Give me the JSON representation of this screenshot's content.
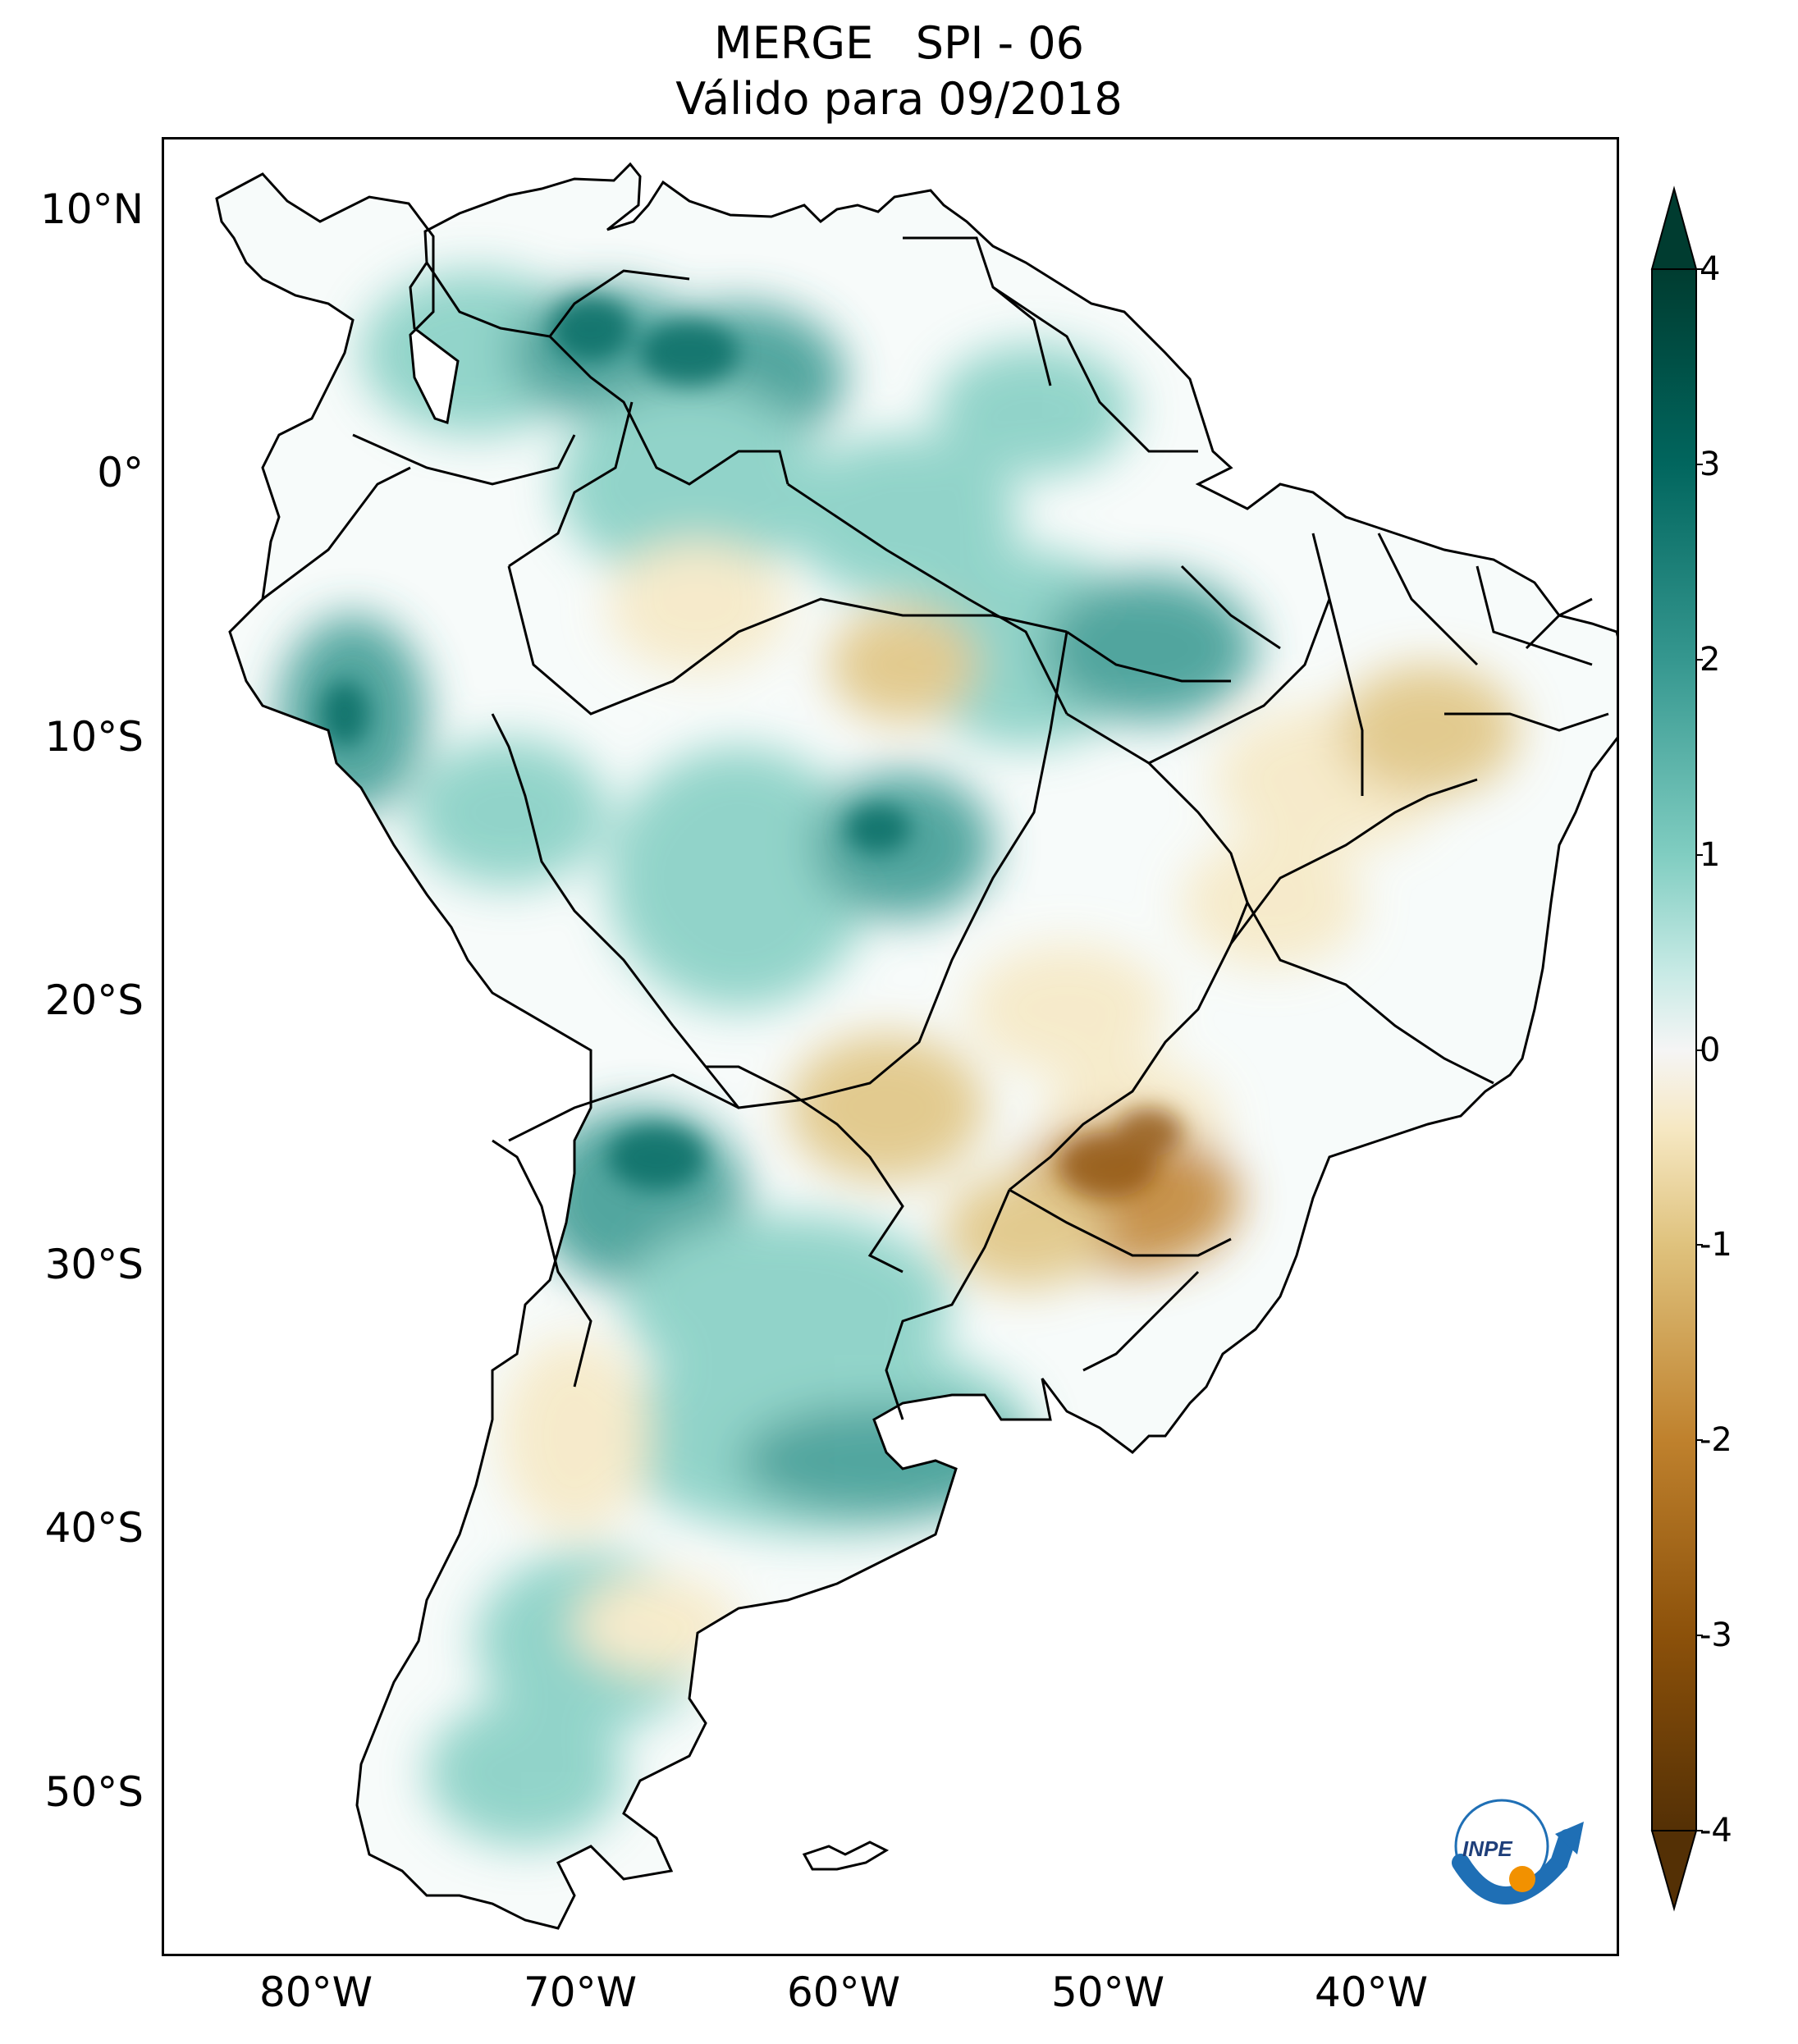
{
  "title": {
    "line1": "MERGE   SPI - 06",
    "line2": "Válido para 09/2018"
  },
  "map": {
    "projection": "PlateCarree",
    "lon_range_deg": [
      -85,
      -30
    ],
    "lat_range_deg": [
      -56,
      13
    ],
    "lat_tick_labels": [
      "10°N",
      "0°",
      "10°S",
      "20°S",
      "30°S",
      "40°S",
      "50°S"
    ],
    "lon_tick_labels": [
      "80°W",
      "70°W",
      "60°W",
      "50°W",
      "40°W"
    ],
    "field": "SPI-06 (Standardized Precipitation Index, 6 months)",
    "wet_anomaly_color": "#2a9d8f",
    "dry_anomaly_color": "#a6611a",
    "neutral_color": "#ffffff",
    "border_color": "#000000"
  },
  "colorbar": {
    "colormap": "BrBG",
    "min": -4,
    "max": 4,
    "extend": "both",
    "tick_labels": [
      "4",
      "3",
      "2",
      "1",
      "0",
      "-1",
      "-2",
      "-3",
      "-4"
    ],
    "colors_top_to_bottom": [
      "#003c30",
      "#01665e",
      "#35978f",
      "#80cdc1",
      "#c7eae5",
      "#f5f5f5",
      "#f6e8c3",
      "#dfc27d",
      "#bf812d",
      "#8c510a",
      "#543005"
    ]
  },
  "logo": {
    "text": "INPE",
    "arc_color": "#1f6fb5",
    "dot_color": "#f29100",
    "icon": "inpe-logo-icon"
  }
}
